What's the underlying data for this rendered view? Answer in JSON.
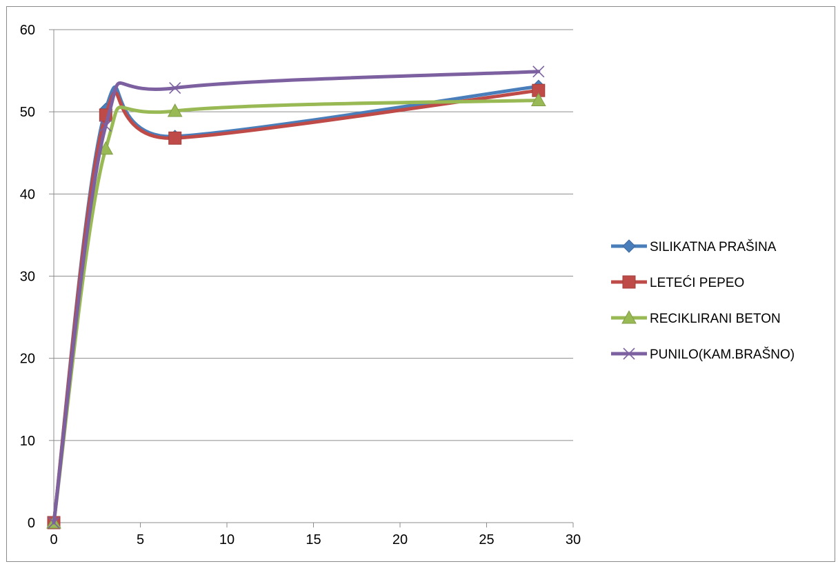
{
  "chart_data": {
    "type": "line",
    "title": "",
    "xlabel": "",
    "ylabel": "",
    "xlim": [
      0,
      30
    ],
    "ylim": [
      0,
      60
    ],
    "x_ticks": [
      0,
      5,
      10,
      15,
      20,
      25,
      30
    ],
    "y_ticks": [
      0,
      10,
      20,
      30,
      40,
      50,
      60
    ],
    "grid": "horizontal",
    "smooth": true,
    "legend_position": "right",
    "series": [
      {
        "name": "SILIKATNA PRAŠINA",
        "color": "#4a7ebb",
        "marker": "diamond",
        "x": [
          0,
          3,
          7,
          28
        ],
        "y": [
          0,
          50.3,
          47.0,
          53.1
        ]
      },
      {
        "name": "LETEĆI PEPEO",
        "color": "#be4b48",
        "marker": "square",
        "x": [
          0,
          3,
          7,
          28
        ],
        "y": [
          0,
          49.6,
          46.8,
          52.6
        ]
      },
      {
        "name": "RECIKLIRANI BETON",
        "color": "#98b954",
        "marker": "triangle",
        "x": [
          0,
          3,
          7,
          28
        ],
        "y": [
          0,
          45.5,
          50.1,
          51.4
        ]
      },
      {
        "name": "PUNILO(KAM.BRAŠNO)",
        "color": "#7d60a0",
        "marker": "x",
        "x": [
          0,
          3,
          7,
          28
        ],
        "y": [
          0,
          48.3,
          52.9,
          54.9
        ]
      }
    ]
  }
}
